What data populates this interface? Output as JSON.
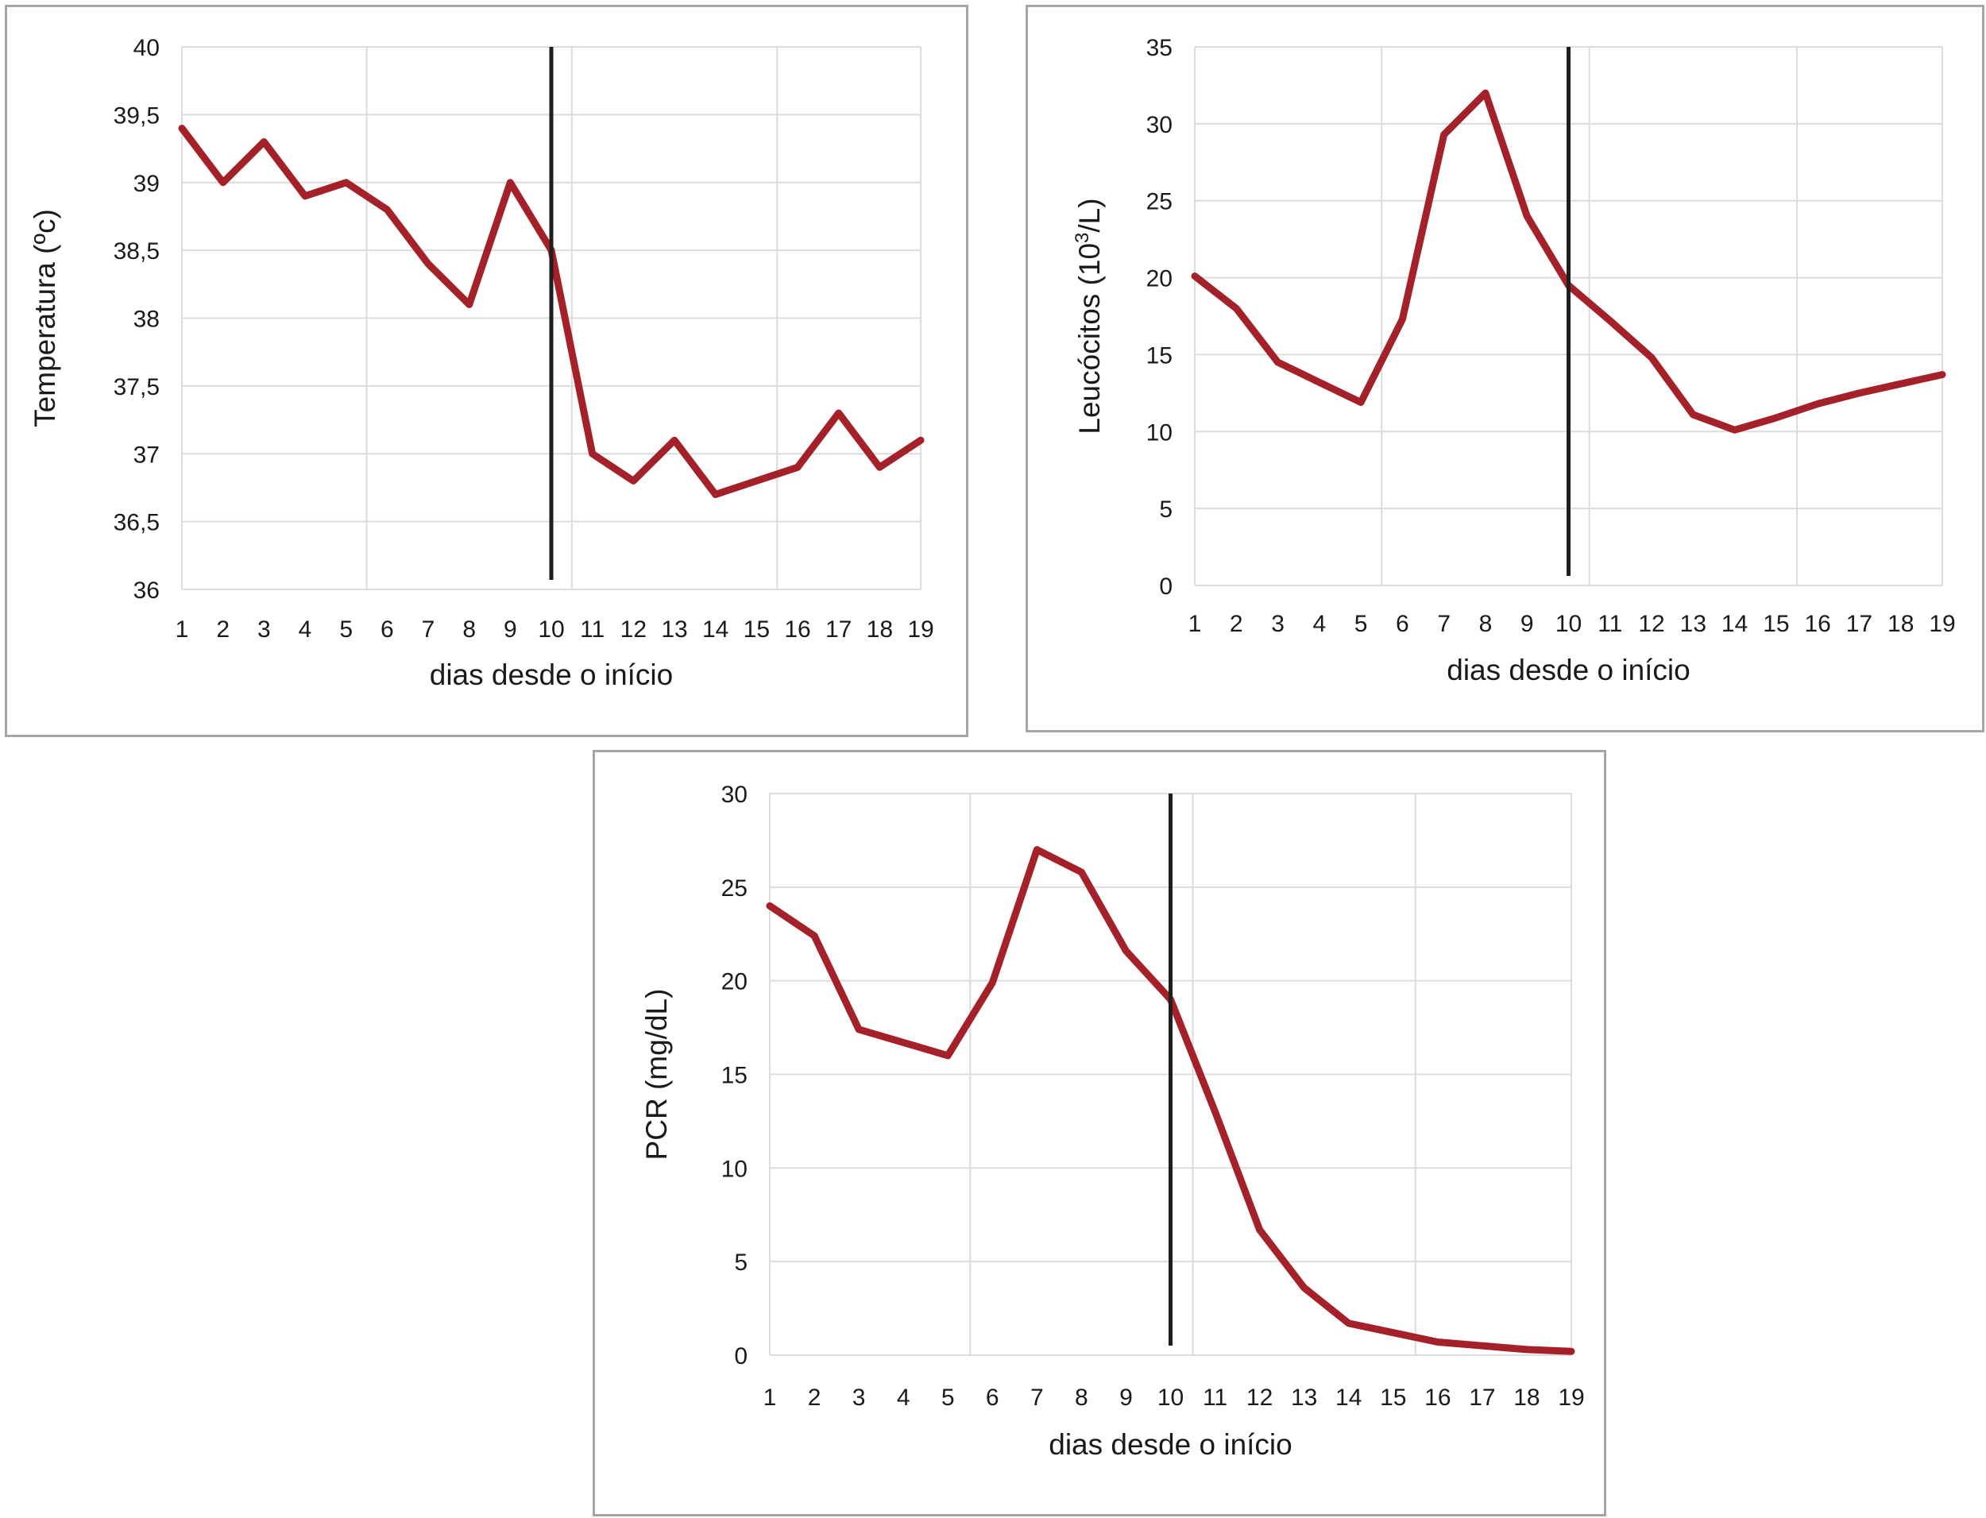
{
  "chart_data": [
    {
      "id": "temp",
      "type": "line",
      "title": "",
      "xlabel": "dias desde o início",
      "ylabel": "Temperatura (ºc)",
      "ylabel_sup": "",
      "ylabel_suffix": "",
      "x": [
        "1",
        "2",
        "3",
        "4",
        "5",
        "6",
        "7",
        "8",
        "9",
        "10",
        "11",
        "12",
        "13",
        "14",
        "15",
        "16",
        "17",
        "18",
        "19"
      ],
      "series": [
        {
          "values": [
            39.4,
            39.0,
            39.3,
            38.9,
            39.0,
            38.8,
            38.4,
            38.1,
            39.0,
            38.5,
            37.0,
            36.8,
            37.1,
            36.7,
            36.8,
            36.9,
            37.3,
            36.9,
            37.1
          ]
        }
      ],
      "ylim": [
        36,
        40
      ],
      "yticks": [
        36,
        36.5,
        37,
        37.5,
        38,
        38.5,
        39,
        39.5,
        40
      ],
      "ytick_labels": [
        "36",
        "36,5",
        "37",
        "37,5",
        "38",
        "38,5",
        "39",
        "39,5",
        "40"
      ],
      "vertical_marker_x": 10,
      "grid": true,
      "line_color": "#a5212a",
      "marker_color": "#1f1f1f"
    },
    {
      "id": "leuc",
      "type": "line",
      "title": "",
      "xlabel": "dias desde o início",
      "ylabel": "Leucócitos (10",
      "ylabel_sup": "3",
      "ylabel_suffix": "/L)",
      "x": [
        "1",
        "2",
        "3",
        "4",
        "5",
        "6",
        "7",
        "8",
        "9",
        "10",
        "11",
        "12",
        "13",
        "14",
        "15",
        "16",
        "17",
        "18",
        "19"
      ],
      "series": [
        {
          "values": [
            20.1,
            18.0,
            14.5,
            13.2,
            11.9,
            17.3,
            29.3,
            32.0,
            24.0,
            19.5,
            17.2,
            14.8,
            11.1,
            10.1,
            10.9,
            11.8,
            12.5,
            13.1,
            13.7
          ]
        }
      ],
      "ylim": [
        0,
        35
      ],
      "yticks": [
        0,
        5,
        10,
        15,
        20,
        25,
        30,
        35
      ],
      "ytick_labels": [
        "0",
        "5",
        "10",
        "15",
        "20",
        "25",
        "30",
        "35"
      ],
      "vertical_marker_x": 10,
      "grid": true,
      "line_color": "#a5212a",
      "marker_color": "#1f1f1f"
    },
    {
      "id": "pcr",
      "type": "line",
      "title": "",
      "xlabel": "dias desde o início",
      "ylabel": "PCR (mg/dL)",
      "ylabel_sup": "",
      "ylabel_suffix": "",
      "x": [
        "1",
        "2",
        "3",
        "4",
        "5",
        "6",
        "7",
        "8",
        "9",
        "10",
        "11",
        "12",
        "13",
        "14",
        "15",
        "16",
        "17",
        "18",
        "19"
      ],
      "series": [
        {
          "values": [
            24.0,
            22.4,
            17.4,
            16.7,
            16.0,
            19.9,
            27.0,
            25.8,
            21.6,
            19.0,
            13.0,
            6.7,
            3.6,
            1.7,
            1.2,
            0.7,
            0.5,
            0.3,
            0.2
          ]
        }
      ],
      "ylim": [
        0,
        30
      ],
      "yticks": [
        0,
        5,
        10,
        15,
        20,
        25,
        30
      ],
      "ytick_labels": [
        "0",
        "5",
        "10",
        "15",
        "20",
        "25",
        "30"
      ],
      "vertical_marker_x": 10,
      "grid": true,
      "line_color": "#a5212a",
      "marker_color": "#1f1f1f"
    }
  ]
}
